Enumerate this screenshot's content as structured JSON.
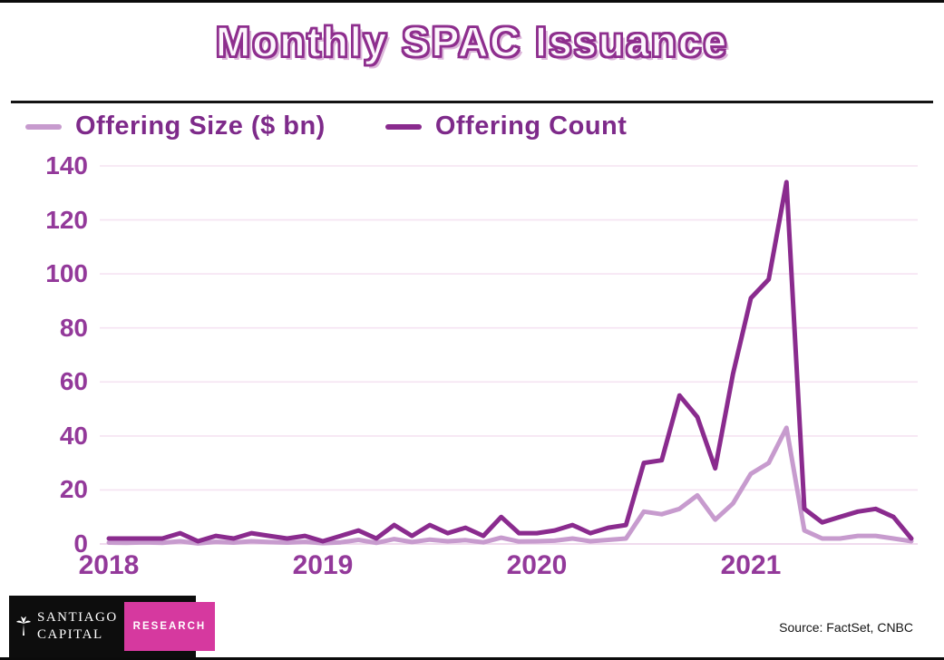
{
  "title": "Monthly SPAC Issuance",
  "chart_data": {
    "type": "line",
    "title": "Monthly SPAC Issuance",
    "grid": "horizontal",
    "legend_position": "top-left",
    "ylim": [
      0,
      140
    ],
    "yticks": [
      0,
      20,
      40,
      60,
      80,
      100,
      120,
      140
    ],
    "xticks": [
      "2018",
      "2019",
      "2020",
      "2021"
    ],
    "categories": [
      "2018-01",
      "2018-02",
      "2018-03",
      "2018-04",
      "2018-05",
      "2018-06",
      "2018-07",
      "2018-08",
      "2018-09",
      "2018-10",
      "2018-11",
      "2018-12",
      "2019-01",
      "2019-02",
      "2019-03",
      "2019-04",
      "2019-05",
      "2019-06",
      "2019-07",
      "2019-08",
      "2019-09",
      "2019-10",
      "2019-11",
      "2019-12",
      "2020-01",
      "2020-02",
      "2020-03",
      "2020-04",
      "2020-05",
      "2020-06",
      "2020-07",
      "2020-08",
      "2020-09",
      "2020-10",
      "2020-11",
      "2020-12",
      "2021-01",
      "2021-02",
      "2021-03",
      "2021-04",
      "2021-05",
      "2021-06",
      "2021-07",
      "2021-08",
      "2021-09",
      "2021-10"
    ],
    "series": [
      {
        "name": "Offering Size ($ bn)",
        "color": "#c79bce",
        "values": [
          0.5,
          0.4,
          0.6,
          0.4,
          1.0,
          0.2,
          0.8,
          0.5,
          1.0,
          0.7,
          0.5,
          0.8,
          0.3,
          0.6,
          1.5,
          0.4,
          1.8,
          0.7,
          1.6,
          1.0,
          1.4,
          0.6,
          2.3,
          0.9,
          1.0,
          1.2,
          2.0,
          1.0,
          1.5,
          2.0,
          12,
          11,
          13,
          18,
          9,
          15,
          26,
          30,
          43,
          5,
          2,
          2,
          3,
          3,
          2,
          1
        ]
      },
      {
        "name": "Offering Count",
        "color": "#8a2b8e",
        "values": [
          2,
          2,
          2,
          2,
          4,
          1,
          3,
          2,
          4,
          3,
          2,
          3,
          1,
          3,
          5,
          2,
          7,
          3,
          7,
          4,
          6,
          3,
          10,
          4,
          4,
          5,
          7,
          4,
          6,
          7,
          30,
          31,
          55,
          47,
          28,
          63,
          91,
          98,
          134,
          13,
          8,
          10,
          12,
          13,
          10,
          2
        ]
      }
    ]
  },
  "footer": {
    "logo": {
      "line1": "Santiago",
      "line2": "Capital",
      "badge": "RESEARCH",
      "badge_color": "#d6399f",
      "icon": "palm-tree-icon"
    },
    "source": "Source: FactSet, CNBC"
  }
}
